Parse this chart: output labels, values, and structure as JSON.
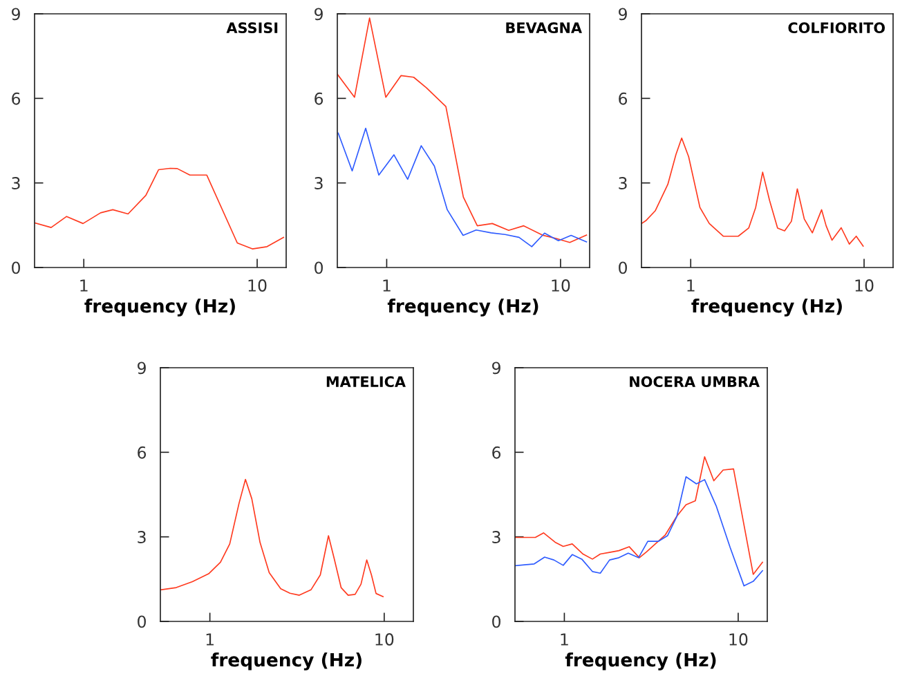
{
  "chart_data": [
    {
      "type": "line",
      "title": "ASSISI",
      "xlabel": "frequency (Hz)",
      "log": "x",
      "xlim": [
        0.52,
        14.7
      ],
      "xticks": [
        1,
        10
      ],
      "ylim": [
        0,
        9
      ],
      "yticks": [
        0,
        3,
        6,
        9
      ],
      "series": [
        {
          "color": "#ff3a1f",
          "x": [
            0.523,
            0.648,
            0.796,
            0.99,
            1.25,
            1.47,
            1.8,
            2.28,
            2.7,
            3.15,
            3.46,
            4.09,
            5.12,
            7.68,
            9.38,
            11.4,
            14.2
          ],
          "values": [
            1.58,
            1.42,
            1.81,
            1.56,
            1.94,
            2.05,
            1.9,
            2.56,
            3.47,
            3.52,
            3.51,
            3.28,
            3.28,
            0.87,
            0.66,
            0.74,
            1.07
          ]
        }
      ]
    },
    {
      "type": "line",
      "title": "BEVAGNA",
      "xlabel": "frequency (Hz)",
      "log": "x",
      "xlim": [
        0.52,
        14.7
      ],
      "xticks": [
        1,
        10
      ],
      "ylim": [
        0,
        9
      ],
      "yticks": [
        0,
        3,
        6,
        9
      ],
      "series": [
        {
          "color": "#ff3a1f",
          "x": [
            0.52,
            0.653,
            0.797,
            0.988,
            1.21,
            1.43,
            1.69,
            2.19,
            2.76,
            3.32,
            4.05,
            5.03,
            6.14,
            7.85,
            9.43,
            11.3,
            14.1
          ],
          "values": [
            6.86,
            6.04,
            8.85,
            6.04,
            6.81,
            6.75,
            6.38,
            5.71,
            2.5,
            1.48,
            1.56,
            1.32,
            1.48,
            1.15,
            1.03,
            0.89,
            1.15
          ]
        },
        {
          "color": "#2f5cff",
          "x": [
            0.526,
            0.633,
            0.757,
            0.901,
            1.1,
            1.32,
            1.58,
            1.88,
            2.23,
            2.75,
            3.27,
            3.99,
            4.8,
            5.77,
            6.83,
            8.09,
            9.72,
            11.5,
            14.1
          ],
          "values": [
            4.77,
            3.43,
            4.94,
            3.28,
            4.0,
            3.13,
            4.32,
            3.6,
            2.05,
            1.14,
            1.33,
            1.23,
            1.17,
            1.07,
            0.74,
            1.22,
            0.95,
            1.14,
            0.91
          ]
        }
      ]
    },
    {
      "type": "line",
      "title": "COLFIORITO",
      "xlabel": "frequency (Hz)",
      "log": "x",
      "xlim": [
        0.52,
        14.7
      ],
      "xticks": [
        1,
        10
      ],
      "ylim": [
        0,
        9
      ],
      "yticks": [
        0,
        3,
        6,
        9
      ],
      "series": [
        {
          "color": "#ff3a1f",
          "x": [
            0.52,
            0.551,
            0.624,
            0.738,
            0.822,
            0.887,
            0.973,
            1.13,
            1.28,
            1.54,
            1.88,
            2.16,
            2.37,
            2.6,
            2.85,
            3.17,
            3.48,
            3.81,
            4.12,
            4.52,
            5.03,
            5.69,
            6.04,
            6.53,
            7.38,
            8.22,
            9.01,
            9.88
          ],
          "values": [
            1.56,
            1.66,
            2.01,
            2.95,
            4.01,
            4.59,
            3.93,
            2.13,
            1.56,
            1.11,
            1.11,
            1.4,
            2.13,
            3.38,
            2.38,
            1.4,
            1.3,
            1.64,
            2.79,
            1.72,
            1.23,
            2.05,
            1.48,
            0.97,
            1.41,
            0.83,
            1.11,
            0.76
          ]
        }
      ]
    },
    {
      "type": "line",
      "title": "MATELICA",
      "xlabel": "frequency (Hz)",
      "log": "x",
      "xlim": [
        0.52,
        14.7
      ],
      "xticks": [
        1,
        10
      ],
      "ylim": [
        0,
        9
      ],
      "yticks": [
        0,
        3,
        6,
        9
      ],
      "series": [
        {
          "color": "#ff3a1f",
          "x": [
            0.52,
            0.641,
            0.794,
            0.984,
            1.15,
            1.3,
            1.47,
            1.6,
            1.74,
            1.94,
            2.19,
            2.55,
            2.88,
            3.26,
            3.8,
            4.3,
            4.79,
            5.17,
            5.66,
            6.21,
            6.81,
            7.36,
            7.94,
            8.45,
            8.98,
            9.85
          ],
          "values": [
            1.12,
            1.2,
            1.41,
            1.69,
            2.1,
            2.75,
            4.19,
            5.04,
            4.35,
            2.8,
            1.73,
            1.16,
            1.0,
            0.93,
            1.12,
            1.65,
            3.04,
            2.22,
            1.2,
            0.93,
            0.96,
            1.32,
            2.18,
            1.65,
            0.99,
            0.88
          ]
        }
      ]
    },
    {
      "type": "line",
      "title": "NOCERA UMBRA",
      "xlabel": "frequency (Hz)",
      "log": "x",
      "xlim": [
        0.52,
        14.7
      ],
      "xticks": [
        1,
        10
      ],
      "ylim": [
        0,
        9
      ],
      "yticks": [
        0,
        3,
        6,
        9
      ],
      "series": [
        {
          "color": "#ff3a1f",
          "x": [
            0.52,
            0.681,
            0.759,
            0.885,
            0.985,
            1.11,
            1.28,
            1.45,
            1.61,
            1.82,
            2.06,
            2.36,
            2.7,
            2.97,
            3.8,
            4.43,
            5.01,
            5.67,
            6.41,
            7.24,
            8.19,
            9.4,
            12.2,
            13.8
          ],
          "values": [
            2.98,
            2.98,
            3.14,
            2.81,
            2.66,
            2.75,
            2.39,
            2.21,
            2.39,
            2.45,
            2.51,
            2.65,
            2.26,
            2.47,
            3.06,
            3.73,
            4.14,
            4.28,
            5.84,
            4.99,
            5.37,
            5.41,
            1.67,
            2.1
          ]
        },
        {
          "color": "#2f5cff",
          "x": [
            0.525,
            0.671,
            0.77,
            0.871,
            0.985,
            1.11,
            1.26,
            1.45,
            1.61,
            1.82,
            2.06,
            2.33,
            2.67,
            3.02,
            3.47,
            3.92,
            4.43,
            5.01,
            5.75,
            6.41,
            7.47,
            8.98,
            10.8,
            12.2,
            13.8
          ],
          "values": [
            1.98,
            2.04,
            2.28,
            2.18,
            1.99,
            2.37,
            2.21,
            1.77,
            1.71,
            2.18,
            2.26,
            2.42,
            2.26,
            2.84,
            2.84,
            3.04,
            3.71,
            5.13,
            4.88,
            5.03,
            4.1,
            2.63,
            1.26,
            1.42,
            1.8
          ]
        }
      ]
    }
  ]
}
